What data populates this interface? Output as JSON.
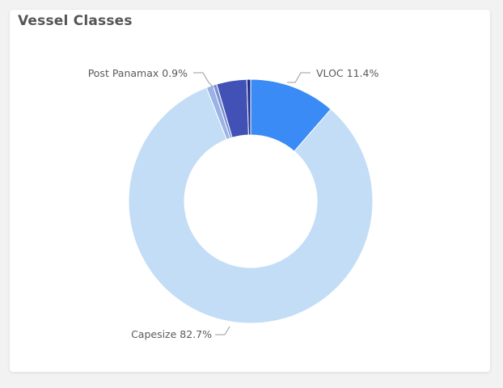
{
  "card": {
    "title": "Vessel Classes"
  },
  "chart_data": {
    "type": "pie",
    "variant": "donut",
    "title": "Vessel Classes",
    "labels_position": "outside",
    "slices": [
      {
        "name": "Capesize",
        "value": 82.7,
        "color": "#c3ddf6",
        "label": "Capesize 82.7%"
      },
      {
        "name": "Post Panamax",
        "value": 0.9,
        "color": "#9ab3e6",
        "label": "Post Panamax 0.9%"
      },
      {
        "name": "",
        "value": 0.5,
        "color": "#7b90d0",
        "label": ""
      },
      {
        "name": "",
        "value": 4.0,
        "color": "#4251b6",
        "label": ""
      },
      {
        "name": "",
        "value": 0.5,
        "color": "#1e2a8a",
        "label": ""
      },
      {
        "name": "VLOC",
        "value": 11.4,
        "color": "#3a8bf5",
        "label": "VLOC 11.4%"
      }
    ]
  }
}
